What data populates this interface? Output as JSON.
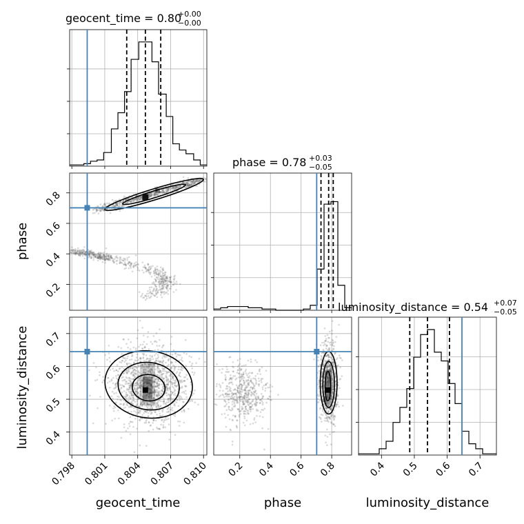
{
  "chart_data": {
    "type": "corner",
    "parameters": [
      "geocent_time",
      "phase",
      "luminosity_distance"
    ],
    "truths": {
      "geocent_time": 0.7994,
      "phase": 0.702,
      "luminosity_distance": 0.645
    },
    "titles": [
      {
        "param": "geocent_time",
        "main": "geocent_time = 0.80",
        "plus": "+0.00",
        "minus": "−0.00"
      },
      {
        "param": "phase",
        "main": "phase = 0.78",
        "plus": "+0.03",
        "minus": "−0.05"
      },
      {
        "param": "luminosity_distance",
        "main": "luminosity_distance = 0.54",
        "plus": "+0.07",
        "minus": "−0.05"
      }
    ],
    "axis_labels": {
      "x": [
        "geocent_time",
        "phase",
        "luminosity_distance"
      ],
      "y": [
        "phase",
        "luminosity_distance"
      ]
    },
    "ranges": {
      "geocent_time": [
        0.7978,
        0.8103
      ],
      "phase": [
        0.03,
        0.93
      ],
      "luminosity_distance": [
        0.33,
        0.75
      ]
    },
    "ticks": {
      "geocent_time": [
        "0.798",
        "0.801",
        "0.804",
        "0.807",
        "0.810"
      ],
      "phase": [
        "0.2",
        "0.4",
        "0.6",
        "0.8"
      ],
      "luminosity_distance_y": [
        "0.4",
        "0.5",
        "0.6",
        "0.7"
      ],
      "luminosity_distance_x": [
        "0.4",
        "0.5",
        "0.6",
        "0.7"
      ]
    },
    "hist_geocent_time": {
      "bins": [
        0.7978,
        0.7985,
        0.7991,
        0.7997,
        0.8003,
        0.8009,
        0.8016,
        0.8022,
        0.8028,
        0.8034,
        0.8041,
        0.8047,
        0.8053,
        0.8059,
        0.8066,
        0.8072,
        0.8078,
        0.8084,
        0.8091,
        0.8097,
        0.8103
      ],
      "counts": [
        0.01,
        0.01,
        0.02,
        0.04,
        0.05,
        0.11,
        0.3,
        0.43,
        0.6,
        0.86,
        1.0,
        1.0,
        0.84,
        0.58,
        0.4,
        0.18,
        0.13,
        0.1,
        0.05,
        0.01
      ],
      "quantiles": [
        0.803,
        0.8047,
        0.8061
      ]
    },
    "hist_phase": {
      "bins": [
        0.03,
        0.075,
        0.12,
        0.165,
        0.21,
        0.255,
        0.3,
        0.345,
        0.39,
        0.435,
        0.48,
        0.525,
        0.57,
        0.615,
        0.66,
        0.705,
        0.75,
        0.795,
        0.84,
        0.885,
        0.93
      ],
      "counts": [
        0.01,
        0.02,
        0.03,
        0.03,
        0.03,
        0.02,
        0.02,
        0.01,
        0.01,
        0.0,
        0.0,
        0.0,
        0.0,
        0.01,
        0.04,
        0.33,
        0.85,
        0.87,
        0.2,
        0.02
      ],
      "quantiles": [
        0.73,
        0.78,
        0.81
      ]
    },
    "hist_luminosity_distance": {
      "bins": [
        0.33,
        0.351,
        0.372,
        0.393,
        0.414,
        0.435,
        0.456,
        0.477,
        0.498,
        0.519,
        0.54,
        0.561,
        0.582,
        0.603,
        0.624,
        0.645,
        0.666,
        0.687,
        0.708,
        0.729,
        0.75
      ],
      "counts": [
        0.01,
        0.01,
        0.01,
        0.05,
        0.11,
        0.26,
        0.38,
        0.53,
        0.78,
        0.96,
        1.0,
        0.82,
        0.75,
        0.57,
        0.41,
        0.19,
        0.09,
        0.05,
        0.01,
        0.01
      ],
      "quantiles": [
        0.486,
        0.54,
        0.607
      ]
    }
  }
}
